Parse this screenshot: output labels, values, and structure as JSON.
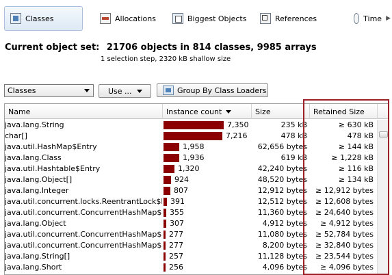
{
  "tabs": [
    {
      "label": "Classes",
      "icon": "classes-icon",
      "selected": true
    },
    {
      "label": "Allocations",
      "icon": "allocations-icon",
      "selected": false
    },
    {
      "label": "Biggest Objects",
      "icon": "biggest-objects-icon",
      "selected": false
    },
    {
      "label": "References",
      "icon": "references-icon",
      "selected": false
    },
    {
      "label": "Time",
      "icon": "time-icon",
      "selected": false
    }
  ],
  "header": {
    "label": "Current object set:",
    "summary": "21706 objects in 814 classes, 9985 arrays",
    "subtitle": "1 selection step, 2320 kB shallow size"
  },
  "toolbar": {
    "classes_combo": "Classes",
    "use_button": "Use ...",
    "group_button": "Group By Class Loaders"
  },
  "table": {
    "columns": [
      "Name",
      "Instance count",
      "Size",
      "Retained Size"
    ],
    "sorted_column": "Instance count",
    "max_count": 7350,
    "rows": [
      {
        "name": "java.lang.String",
        "count": 7350,
        "count_label": "7,350",
        "size": "235 kB",
        "retained": "≥ 630 kB"
      },
      {
        "name": "char[]",
        "count": 7216,
        "count_label": "7,216",
        "size": "478 kB",
        "retained": "478 kB"
      },
      {
        "name": "java.util.HashMap$Entry",
        "count": 1958,
        "count_label": "1,958",
        "size": "62,656 bytes",
        "retained": "≥ 144 kB"
      },
      {
        "name": "java.lang.Class",
        "count": 1936,
        "count_label": "1,936",
        "size": "619 kB",
        "retained": "≥ 1,228 kB"
      },
      {
        "name": "java.util.Hashtable$Entry",
        "count": 1320,
        "count_label": "1,320",
        "size": "42,240 bytes",
        "retained": "≥ 116 kB"
      },
      {
        "name": "java.lang.Object[]",
        "count": 924,
        "count_label": "924",
        "size": "48,520 bytes",
        "retained": "≥ 134 kB"
      },
      {
        "name": "java.lang.Integer",
        "count": 807,
        "count_label": "807",
        "size": "12,912 bytes",
        "retained": "≥ 12,912 bytes"
      },
      {
        "name": "java.util.concurrent.locks.ReentrantLock$No...",
        "count": 391,
        "count_label": "391",
        "size": "12,512 bytes",
        "retained": "≥ 12,608 bytes"
      },
      {
        "name": "java.util.concurrent.ConcurrentHashMap$Ha...",
        "count": 355,
        "count_label": "355",
        "size": "11,360 bytes",
        "retained": "≥ 24,640 bytes"
      },
      {
        "name": "java.lang.Object",
        "count": 307,
        "count_label": "307",
        "size": "4,912 bytes",
        "retained": "≥ 4,912 bytes"
      },
      {
        "name": "java.util.concurrent.ConcurrentHashMap$Se...",
        "count": 277,
        "count_label": "277",
        "size": "11,080 bytes",
        "retained": "≥ 52,784 bytes"
      },
      {
        "name": "java.util.concurrent.ConcurrentHashMap$Ha...",
        "count": 277,
        "count_label": "277",
        "size": "8,200 bytes",
        "retained": "≥ 32,840 bytes"
      },
      {
        "name": "java.lang.String[]",
        "count": 257,
        "count_label": "257",
        "size": "11,128 bytes",
        "retained": "≥ 23,544 bytes"
      },
      {
        "name": "java.lang.Short",
        "count": 256,
        "count_label": "256",
        "size": "4,096 bytes",
        "retained": "≥ 4,096 bytes"
      }
    ]
  },
  "colors": {
    "bar": "#8b0000",
    "highlight": "#9c1f28",
    "tab_selected": "#dde9f5"
  }
}
